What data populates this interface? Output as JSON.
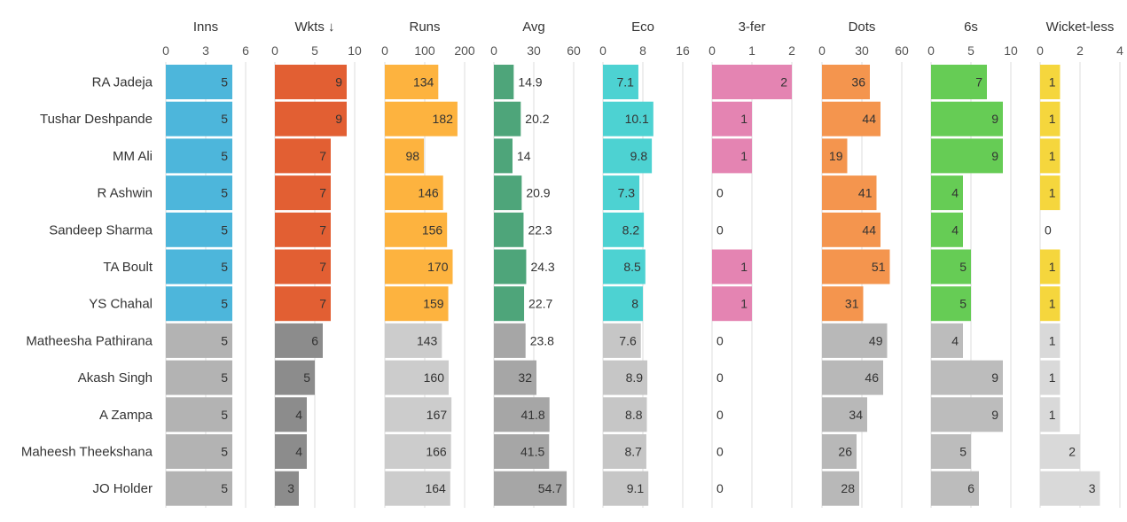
{
  "chart_data": {
    "type": "table",
    "rows": [
      "RA Jadeja",
      "Tushar Deshpande",
      "MM Ali",
      "R Ashwin",
      "Sandeep Sharma",
      "TA Boult",
      "YS Chahal",
      "Matheesha Pathirana",
      "Akash Singh",
      "A Zampa",
      "Maheesh Theekshana",
      "JO Holder"
    ],
    "highlighted_rows": 7,
    "columns": [
      {
        "name": "Inns",
        "ticks": [
          "0",
          "3",
          "6"
        ],
        "max": 6,
        "color": "#4db6db",
        "muted_color": "#b3b3b3",
        "values": [
          5,
          5,
          5,
          5,
          5,
          5,
          5,
          5,
          5,
          5,
          5,
          5
        ]
      },
      {
        "name": "Wkts ↓",
        "ticks": [
          "0",
          "5",
          "10"
        ],
        "max": 10,
        "color": "#e25f33",
        "muted_color": "#8c8c8c",
        "values": [
          9,
          9,
          7,
          7,
          7,
          7,
          7,
          6,
          5,
          4,
          4,
          3
        ]
      },
      {
        "name": "Runs",
        "ticks": [
          "0",
          "100",
          "200"
        ],
        "max": 200,
        "color": "#fdb33f",
        "muted_color": "#cccccc",
        "values": [
          134,
          182,
          98,
          146,
          156,
          170,
          159,
          143,
          160,
          167,
          166,
          164
        ]
      },
      {
        "name": "Avg",
        "ticks": [
          "0",
          "30",
          "60"
        ],
        "max": 60,
        "color": "#4ea57a",
        "muted_color": "#a6a6a6",
        "values": [
          14.9,
          20.2,
          14,
          20.9,
          22.3,
          24.3,
          22.7,
          23.8,
          32,
          41.8,
          41.5,
          54.7
        ]
      },
      {
        "name": "Eco",
        "ticks": [
          "0",
          "8",
          "16"
        ],
        "max": 16,
        "color": "#4dd2d2",
        "muted_color": "#c6c6c6",
        "values": [
          7.1,
          10.1,
          9.8,
          7.3,
          8.2,
          8.5,
          8,
          7.6,
          8.9,
          8.8,
          8.7,
          9.1
        ]
      },
      {
        "name": "3-fer",
        "ticks": [
          "0",
          "1",
          "2"
        ],
        "max": 2,
        "color": "#e484b2",
        "muted_color": "#cccccc",
        "values": [
          2,
          1,
          1,
          0,
          0,
          1,
          1,
          0,
          0,
          0,
          0,
          0
        ]
      },
      {
        "name": "Dots",
        "ticks": [
          "0",
          "30",
          "60"
        ],
        "max": 60,
        "color": "#f4954e",
        "muted_color": "#b8b8b8",
        "values": [
          36,
          44,
          19,
          41,
          44,
          51,
          31,
          49,
          46,
          34,
          26,
          28
        ]
      },
      {
        "name": "6s",
        "ticks": [
          "0",
          "5",
          "10"
        ],
        "max": 10,
        "color": "#66cc55",
        "muted_color": "#bcbcbc",
        "values": [
          7,
          9,
          9,
          4,
          4,
          5,
          5,
          4,
          9,
          9,
          5,
          6
        ]
      },
      {
        "name": "Wicket-less",
        "ticks": [
          "0",
          "2",
          "4"
        ],
        "max": 4,
        "color": "#f5d63d",
        "muted_color": "#d9d9d9",
        "values": [
          1,
          1,
          1,
          1,
          0,
          1,
          1,
          1,
          1,
          1,
          2,
          3
        ]
      }
    ]
  }
}
